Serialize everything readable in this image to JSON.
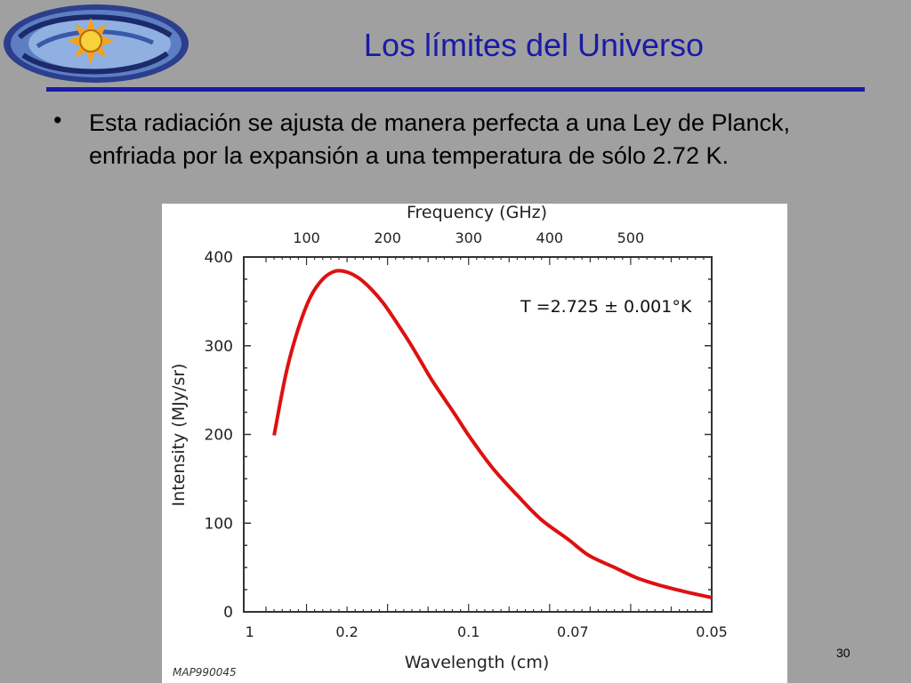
{
  "slide": {
    "title": "Los límites del Universo",
    "bullet": "Esta radiación se ajusta de manera perfecta a una Ley de Planck, enfriada por la expansión a una temperatura de sólo 2.72 K.",
    "page_number": "30",
    "accent_color": "#1a1aa8",
    "background_color": "#a0a0a0"
  },
  "chart_data": {
    "type": "line",
    "top_axis_label": "Frequency (GHz)",
    "top_ticks": [
      "100",
      "200",
      "300",
      "400",
      "500"
    ],
    "top_tick_values": [
      100,
      200,
      300,
      400,
      500
    ],
    "xlabel": "Wavelength (cm)",
    "x_ticks": [
      "1",
      "0.2",
      "0.1",
      "0.07",
      "0.05"
    ],
    "x_tick_values": [
      1,
      0.2,
      0.1,
      0.07,
      0.05
    ],
    "x_scale": "reciprocal",
    "x_range": [
      1.33,
      0.05
    ],
    "ylabel": "Intensity (MJy/sr)",
    "y_ticks": [
      "0",
      "100",
      "200",
      "300",
      "400"
    ],
    "ylim": [
      0,
      400
    ],
    "annotation": "T =2.725 ± 0.001°K",
    "figure_id": "MAP990045",
    "series": [
      {
        "color": "#dd1111",
        "x": [
          0.5,
          0.4,
          0.333,
          0.286,
          0.25,
          0.222,
          0.2,
          0.182,
          0.167,
          0.154,
          0.143,
          0.133,
          0.125,
          0.118,
          0.111,
          0.105,
          0.1,
          0.091,
          0.083,
          0.077,
          0.071,
          0.067,
          0.0625,
          0.059,
          0.0556,
          0.0526,
          0.05
        ],
        "values": [
          199,
          270,
          320,
          355,
          375,
          384,
          383,
          376,
          364,
          348,
          328,
          306,
          284,
          262,
          240,
          219,
          199,
          162,
          130,
          104,
          82,
          64,
          50,
          38,
          29,
          22,
          16
        ]
      }
    ]
  }
}
